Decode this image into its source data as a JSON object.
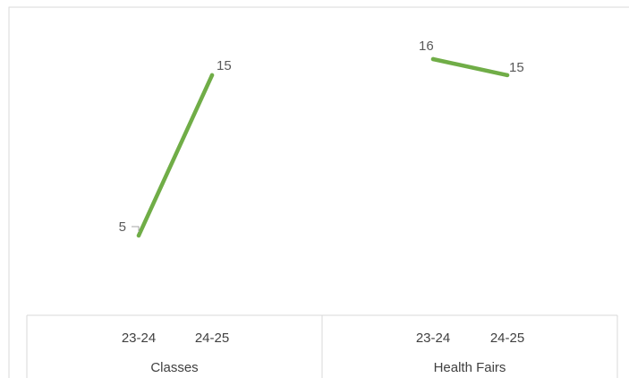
{
  "chart_data": {
    "type": "line",
    "title": "",
    "xlabel": "",
    "ylabel": "",
    "groups": [
      {
        "label": "Classes",
        "categories": [
          "23-24",
          "24-25"
        ],
        "values": [
          5,
          15
        ]
      },
      {
        "label": "Health Fairs",
        "categories": [
          "23-24",
          "24-25"
        ],
        "values": [
          16,
          15
        ]
      }
    ],
    "ylim": [
      0,
      20
    ],
    "grid": false,
    "legend": "none",
    "line_color": "#70ad47",
    "data_labels": true
  }
}
